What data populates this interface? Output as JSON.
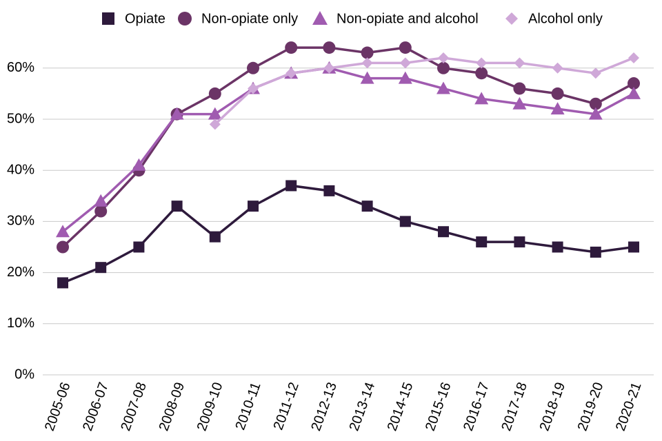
{
  "chart_data": {
    "type": "line",
    "categories": [
      "2005-06",
      "2006-07",
      "2007-08",
      "2008-09",
      "2009-10",
      "2010-11",
      "2011-12",
      "2012-13",
      "2013-14",
      "2014-15",
      "2015-16",
      "2016-17",
      "2017-18",
      "2018-19",
      "2019-20",
      "2020-21"
    ],
    "series": [
      {
        "name": "Opiate",
        "color": "#2e1a3c",
        "marker": "square",
        "values": [
          18,
          21,
          25,
          33,
          27,
          33,
          37,
          36,
          33,
          30,
          28,
          26,
          26,
          25,
          24,
          25
        ]
      },
      {
        "name": "Non-opiate only",
        "color": "#6b3466",
        "marker": "circle",
        "values": [
          25,
          32,
          40,
          51,
          55,
          60,
          64,
          64,
          63,
          64,
          60,
          59,
          56,
          55,
          53,
          57
        ]
      },
      {
        "name": "Non-opiate and alcohol",
        "color": "#a05bb0",
        "marker": "triangle",
        "values": [
          28,
          34,
          41,
          51,
          51,
          56,
          59,
          60,
          58,
          58,
          56,
          54,
          53,
          52,
          51,
          55
        ]
      },
      {
        "name": "Alcohol only",
        "color": "#cfa8d8",
        "marker": "diamond",
        "values": [
          null,
          null,
          null,
          null,
          49,
          56,
          59,
          60,
          61,
          61,
          62,
          61,
          61,
          60,
          59,
          62
        ]
      }
    ],
    "ylim": [
      0,
      65
    ],
    "yticks": [
      {
        "value": 0,
        "label": "0%"
      },
      {
        "value": 10,
        "label": "10%"
      },
      {
        "value": 20,
        "label": "20%"
      },
      {
        "value": 30,
        "label": "30%"
      },
      {
        "value": 40,
        "label": "40%"
      },
      {
        "value": 50,
        "label": "50%"
      },
      {
        "value": 60,
        "label": "60%"
      }
    ],
    "grid": true,
    "legend": "top"
  }
}
